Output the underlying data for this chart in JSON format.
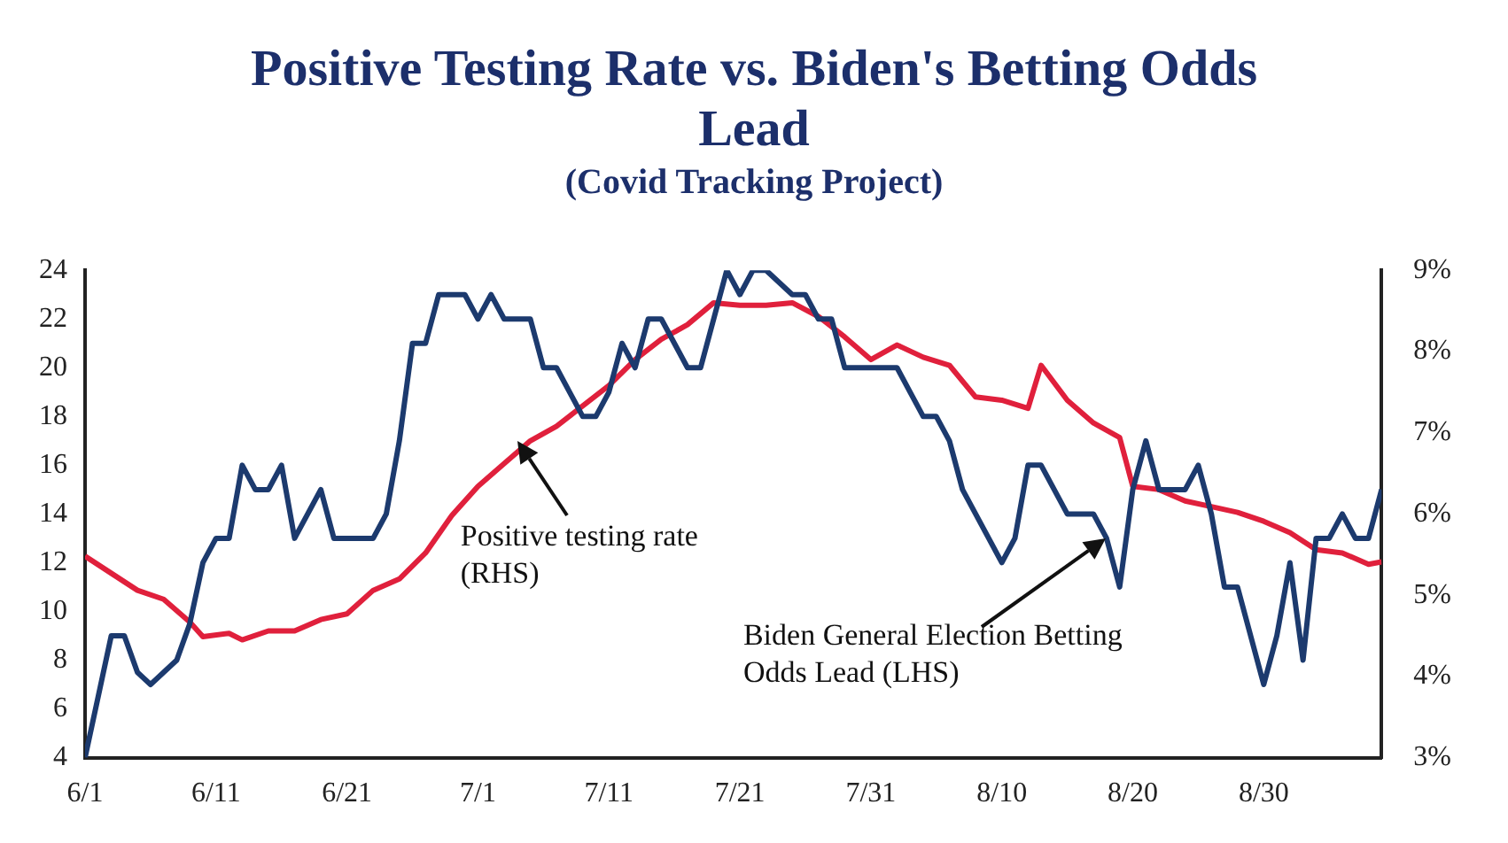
{
  "chart_data": {
    "type": "line",
    "title": "Positive Testing Rate vs. Biden's Betting Odds Lead",
    "subtitle": "(Covid Tracking Project)",
    "xlim": [
      "--06-01",
      "--09-08"
    ],
    "xticks": [
      {
        "value": "--06-01",
        "label": "6/1"
      },
      {
        "value": "--06-11",
        "label": "6/11"
      },
      {
        "value": "--06-21",
        "label": "6/21"
      },
      {
        "value": "--07-01",
        "label": "7/1"
      },
      {
        "value": "--07-11",
        "label": "7/11"
      },
      {
        "value": "--07-21",
        "label": "7/21"
      },
      {
        "value": "--07-31",
        "label": "7/31"
      },
      {
        "value": "--08-10",
        "label": "8/10"
      },
      {
        "value": "--08-20",
        "label": "8/20"
      },
      {
        "value": "--08-30",
        "label": "8/30"
      }
    ],
    "ylim": [
      4,
      24
    ],
    "yticks": [
      4,
      6,
      8,
      10,
      12,
      14,
      16,
      18,
      20,
      22,
      24
    ],
    "y2lim": [
      3,
      9
    ],
    "y2ticks": [
      {
        "value": 3,
        "label": "3%"
      },
      {
        "value": 4,
        "label": "4%"
      },
      {
        "value": 5,
        "label": "5%"
      },
      {
        "value": 6,
        "label": "6%"
      },
      {
        "value": 7,
        "label": "7%"
      },
      {
        "value": 8,
        "label": "8%"
      },
      {
        "value": 9,
        "label": "9%"
      }
    ],
    "grid": false,
    "legend": false,
    "marker": "none",
    "line_style": "solid",
    "annotations": [
      {
        "text": "Positive testing rate\n(RHS)",
        "x": "--07-04",
        "y": 17
      },
      {
        "text": "Biden General Election Betting\nOdds Lead (LHS)",
        "x": "--08-18",
        "y": 13
      }
    ],
    "series": [
      {
        "color": "#1c3a6e",
        "axis": "y",
        "x": [
          "--06-01",
          "--06-02",
          "--06-03",
          "--06-04",
          "--06-05",
          "--06-06",
          "--06-07",
          "--06-08",
          "--06-09",
          "--06-10",
          "--06-11",
          "--06-12",
          "--06-13",
          "--06-14",
          "--06-15",
          "--06-16",
          "--06-17",
          "--06-18",
          "--06-19",
          "--06-20",
          "--06-21",
          "--06-22",
          "--06-23",
          "--06-24",
          "--06-25",
          "--06-26",
          "--06-27",
          "--06-28",
          "--06-29",
          "--06-30",
          "--07-01",
          "--07-02",
          "--07-03",
          "--07-04",
          "--07-05",
          "--07-06",
          "--07-07",
          "--07-08",
          "--07-09",
          "--07-10",
          "--07-11",
          "--07-12",
          "--07-13",
          "--07-14",
          "--07-15",
          "--07-16",
          "--07-17",
          "--07-18",
          "--07-19",
          "--07-20",
          "--07-21",
          "--07-22",
          "--07-23",
          "--07-24",
          "--07-25",
          "--07-26",
          "--07-27",
          "--07-28",
          "--07-29",
          "--07-30",
          "--07-31",
          "--08-01",
          "--08-02",
          "--08-03",
          "--08-04",
          "--08-05",
          "--08-06",
          "--08-07",
          "--08-08",
          "--08-09",
          "--08-10",
          "--08-11",
          "--08-12",
          "--08-13",
          "--08-14",
          "--08-15",
          "--08-16",
          "--08-17",
          "--08-18",
          "--08-19",
          "--08-20",
          "--08-21",
          "--08-22",
          "--08-23",
          "--08-24",
          "--08-25",
          "--08-26",
          "--08-27",
          "--08-28",
          "--08-29",
          "--08-30",
          "--08-31",
          "--09-01",
          "--09-02",
          "--09-03",
          "--09-04",
          "--09-05",
          "--09-06",
          "--09-07",
          "--09-08"
        ],
        "values": [
          4,
          6.5,
          9,
          9,
          7.5,
          7,
          7.5,
          8,
          9.5,
          12,
          13,
          13,
          16,
          15,
          15,
          16,
          13,
          14,
          15,
          13,
          13,
          13,
          13,
          14,
          17,
          21,
          21,
          23,
          23,
          23,
          22,
          23,
          22,
          22,
          22,
          20,
          20,
          19,
          18,
          18,
          19,
          21,
          20,
          22,
          22,
          21,
          20,
          20,
          22,
          24,
          23,
          24,
          24,
          23.5,
          23,
          23,
          22,
          22,
          20,
          20,
          20,
          20,
          20,
          19,
          18,
          18,
          17,
          15,
          14,
          13,
          12,
          13,
          16,
          16,
          15,
          14,
          14,
          14,
          13,
          11,
          15,
          17,
          15,
          15,
          15,
          16,
          14,
          11,
          11,
          9,
          7,
          9,
          12,
          8,
          13,
          13,
          14,
          13,
          13,
          15
        ]
      },
      {
        "color": "#e0203c",
        "axis": "y2",
        "x": [
          "--06-01",
          "--06-03",
          "--06-05",
          "--06-07",
          "--06-09",
          "--06-10",
          "--06-12",
          "--06-13",
          "--06-15",
          "--06-17",
          "--06-19",
          "--06-21",
          "--06-23",
          "--06-25",
          "--06-27",
          "--06-29",
          "--07-01",
          "--07-03",
          "--07-05",
          "--07-07",
          "--07-09",
          "--07-11",
          "--07-13",
          "--07-15",
          "--07-17",
          "--07-19",
          "--07-21",
          "--07-23",
          "--07-25",
          "--07-27",
          "--07-29",
          "--07-31",
          "--08-02",
          "--08-04",
          "--08-06",
          "--08-08",
          "--08-10",
          "--08-12",
          "--08-13",
          "--08-15",
          "--08-17",
          "--08-19",
          "--08-20",
          "--08-22",
          "--08-24",
          "--08-26",
          "--08-28",
          "--08-30",
          "--09-01",
          "--09-03",
          "--09-05",
          "--09-07",
          "--09-08"
        ],
        "values": [
          5.48,
          5.27,
          5.06,
          4.95,
          4.67,
          4.49,
          4.53,
          4.45,
          4.56,
          4.56,
          4.7,
          4.77,
          5.06,
          5.2,
          5.52,
          5.98,
          6.34,
          6.62,
          6.9,
          7.08,
          7.33,
          7.58,
          7.9,
          8.15,
          8.33,
          8.6,
          8.57,
          8.57,
          8.6,
          8.43,
          8.18,
          7.9,
          8.08,
          7.93,
          7.83,
          7.44,
          7.4,
          7.3,
          7.83,
          7.4,
          7.12,
          6.94,
          6.34,
          6.3,
          6.16,
          6.09,
          6.02,
          5.91,
          5.77,
          5.56,
          5.52,
          5.38,
          5.41
        ]
      }
    ]
  }
}
